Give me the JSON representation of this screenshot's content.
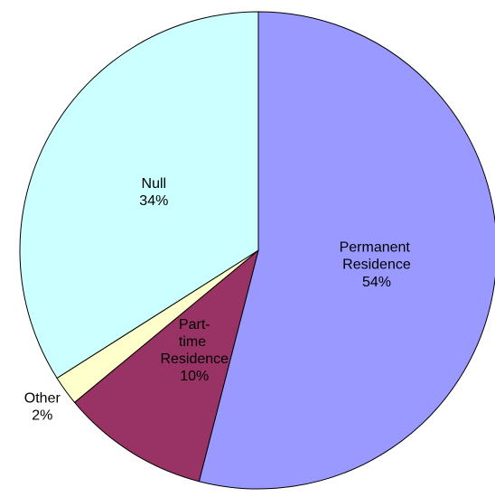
{
  "chart_data": {
    "type": "pie",
    "categories": [
      "Permanent Residence",
      "Part-time Residence",
      "Other",
      "Null"
    ],
    "values": [
      54,
      10,
      2,
      34
    ],
    "value_labels": [
      "54%",
      "10%",
      "2%",
      "34%"
    ],
    "colors": [
      "#9999ff",
      "#993366",
      "#ffffcc",
      "#ccffff"
    ]
  }
}
